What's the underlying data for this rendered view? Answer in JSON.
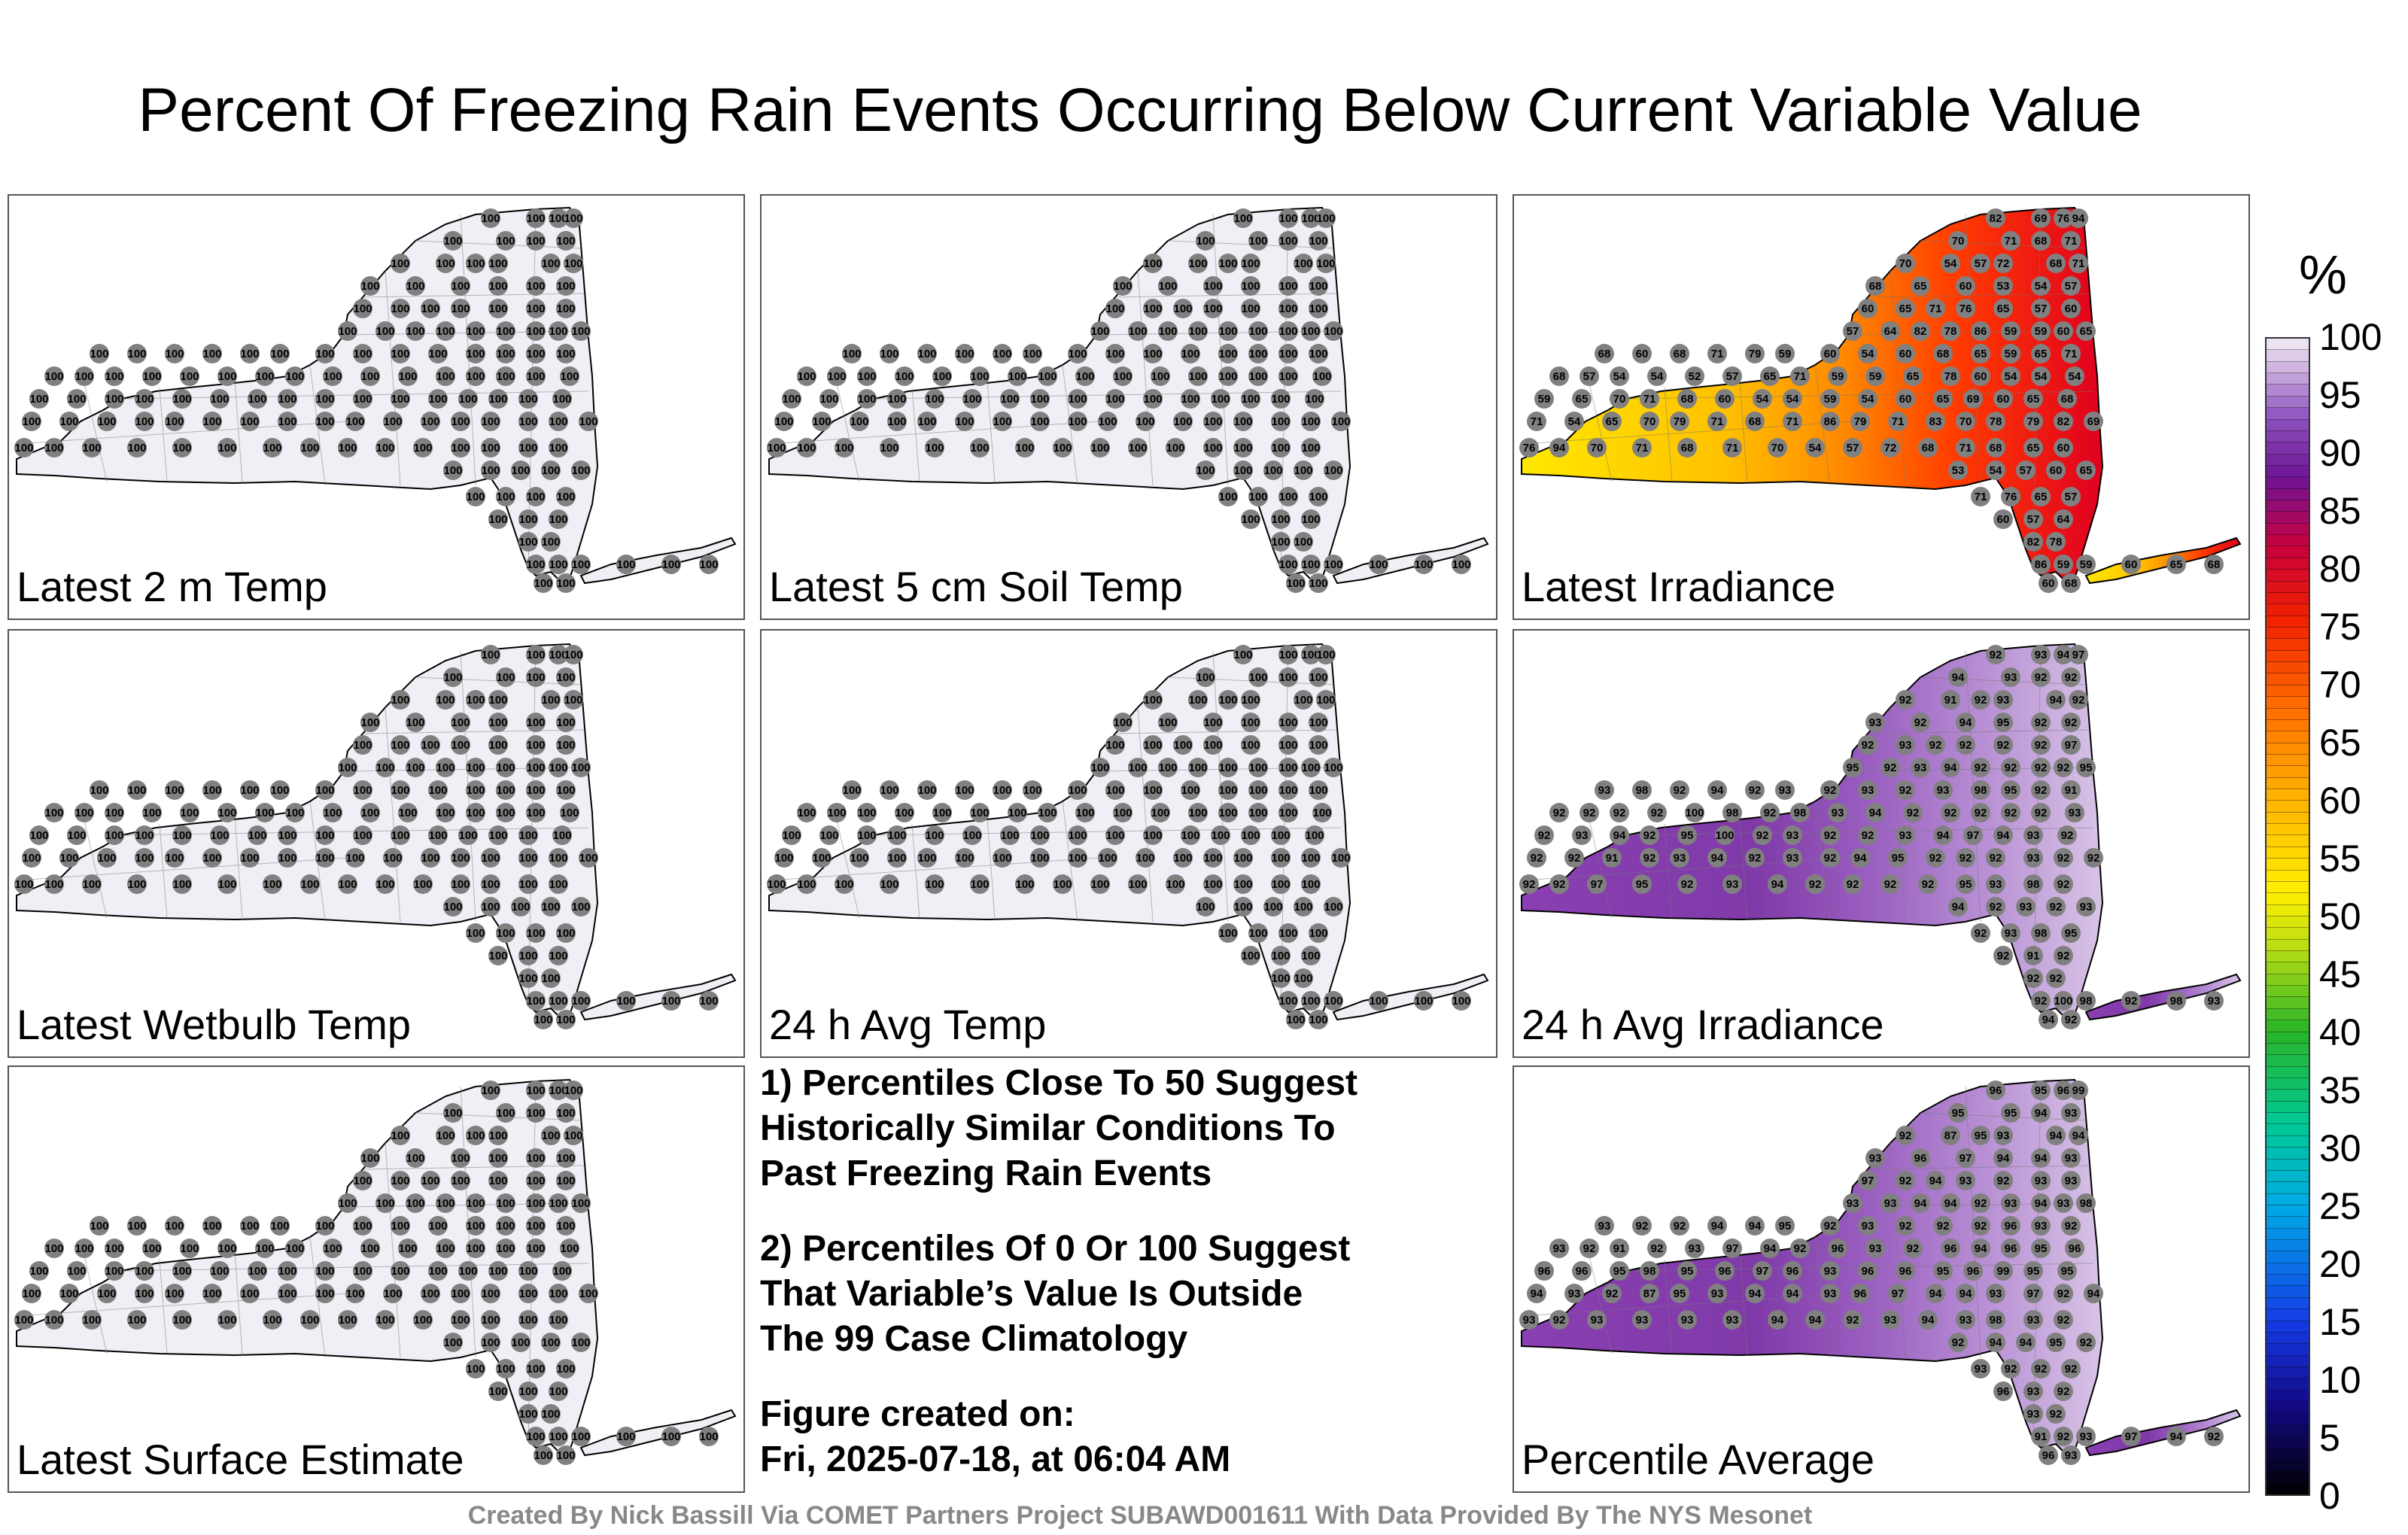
{
  "title": "Percent Of Freezing Rain Events Occurring Below Current Variable Value",
  "panels": [
    {
      "label": "Latest 2 m Temp",
      "mode": "uniform",
      "default": 100
    },
    {
      "label": "Latest 5 cm Soil Temp",
      "mode": "uniform",
      "default": 100
    },
    {
      "label": "Latest Irradiance",
      "mode": "irradiance"
    },
    {
      "label": "Latest Wetbulb Temp",
      "mode": "uniform",
      "default": 100
    },
    {
      "label": "24 h Avg Temp",
      "mode": "uniform",
      "default": 100
    },
    {
      "label": "24 h Avg Irradiance",
      "mode": "avg"
    },
    {
      "label": "Latest Surface Estimate",
      "mode": "uniform",
      "default": 100
    },
    {
      "label": "Percentile Average",
      "mode": "pavg"
    }
  ],
  "notes": [
    "1) Percentiles Close To 50 Suggest\nHistorically Similar Conditions To\nPast Freezing Rain Events",
    "2) Percentiles Of 0 Or 100 Suggest\nThat Variable’s Value Is Outside\nThe 99 Case Climatology",
    "Figure created on:\nFri, 2025-07-18, at 06:04 AM"
  ],
  "credit": "Created By Nick Bassill Via COMET Partners Project SUBAWD001611 With Data Provided By The NYS Mesonet",
  "colorbar": {
    "unit": "%",
    "ticks": [
      "100",
      "95",
      "90",
      "85",
      "80",
      "75",
      "70",
      "65",
      "60",
      "55",
      "50",
      "45",
      "40",
      "35",
      "30",
      "25",
      "20",
      "15",
      "10",
      "5",
      "0"
    ],
    "range": [
      0,
      100
    ]
  },
  "chart_data": {
    "type": "heatmap",
    "title": "Percent Of Freezing Rain Events Occurring Below Current Variable Value",
    "station_values": {
      "latest_irradiance": [
        82,
        69,
        76,
        94,
        70,
        71,
        68,
        71,
        70,
        54,
        57,
        72,
        68,
        71,
        68,
        65,
        60,
        53,
        54,
        57,
        60,
        65,
        71,
        76,
        65,
        57,
        60,
        57,
        64,
        82,
        78,
        86,
        59,
        59,
        60,
        65,
        68,
        60,
        68,
        71,
        79,
        59,
        60,
        54,
        60,
        68,
        65,
        59,
        65,
        71,
        68,
        57,
        54,
        54,
        52,
        57,
        65,
        71,
        59,
        59,
        65,
        78,
        60,
        54,
        54,
        54,
        59,
        65,
        70,
        71,
        68,
        60,
        54,
        54,
        59,
        54,
        60,
        65,
        69,
        60,
        65,
        68,
        71,
        54,
        65,
        70,
        79,
        71,
        68,
        71,
        86,
        79,
        71,
        83,
        70,
        78,
        79
      ],
      "avg_irradiance": [
        92,
        93,
        94,
        97,
        94,
        93,
        92,
        92,
        92,
        91,
        92,
        93,
        94,
        92,
        93,
        92,
        94,
        95,
        92,
        92,
        92,
        93,
        92,
        92,
        92,
        92,
        97,
        95,
        92,
        93,
        94,
        92,
        92,
        92,
        92,
        95,
        93,
        98,
        92,
        94,
        92,
        93,
        92,
        93,
        92,
        93,
        98,
        95,
        92,
        91,
        92,
        92,
        92,
        92,
        100,
        98,
        92,
        98,
        93,
        94,
        92,
        92,
        92,
        92,
        92,
        93,
        92,
        93,
        94,
        92,
        95,
        100,
        92,
        93,
        92
      ],
      "percentile_avg": [
        96,
        95,
        96,
        99,
        95,
        95,
        94,
        93,
        92,
        87,
        95,
        93,
        94,
        94,
        93,
        96,
        97,
        94,
        94,
        93,
        97,
        92,
        94,
        93,
        92,
        93,
        93,
        93,
        93,
        94,
        94,
        92,
        93,
        94,
        93,
        98,
        93,
        92,
        92,
        94,
        94,
        95,
        92,
        93,
        92,
        92,
        92,
        96,
        93,
        92,
        93,
        92,
        91,
        92,
        93,
        97,
        94,
        92,
        96,
        93,
        92,
        96,
        94,
        96,
        95,
        96,
        96,
        96,
        95,
        98,
        95,
        96,
        97,
        96,
        93,
        96
      ]
    },
    "color_scale_range": [
      0,
      100
    ]
  }
}
